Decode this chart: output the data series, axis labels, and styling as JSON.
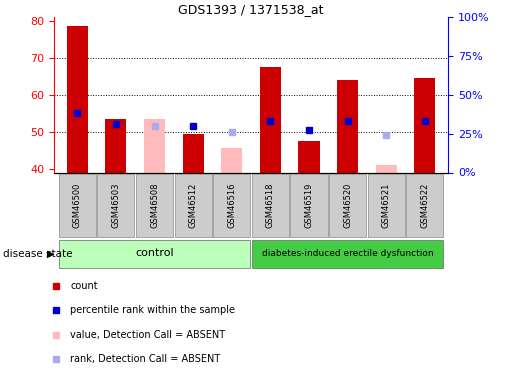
{
  "title": "GDS1393 / 1371538_at",
  "samples": [
    "GSM46500",
    "GSM46503",
    "GSM46508",
    "GSM46512",
    "GSM46516",
    "GSM46518",
    "GSM46519",
    "GSM46520",
    "GSM46521",
    "GSM46522"
  ],
  "count_values": [
    78.5,
    53.5,
    null,
    49.5,
    null,
    67.5,
    47.5,
    64.0,
    null,
    64.5
  ],
  "count_absent": [
    null,
    null,
    53.5,
    null,
    45.5,
    null,
    null,
    null,
    41.0,
    null
  ],
  "rank_values": [
    55.0,
    52.0,
    null,
    51.5,
    null,
    53.0,
    50.5,
    53.0,
    null,
    53.0
  ],
  "rank_absent": [
    null,
    null,
    51.5,
    null,
    50.0,
    null,
    null,
    null,
    49.0,
    null
  ],
  "ylim": [
    39,
    81
  ],
  "yticks": [
    40,
    50,
    60,
    70,
    80
  ],
  "y2ticks": [
    0,
    25,
    50,
    75,
    100
  ],
  "y2labels": [
    "0%",
    "25%",
    "50%",
    "75%",
    "100%"
  ],
  "control_group": [
    0,
    1,
    2,
    3,
    4
  ],
  "disease_group": [
    5,
    6,
    7,
    8,
    9
  ],
  "control_label": "control",
  "disease_label": "diabetes-induced erectile dysfunction",
  "disease_state_label": "disease state",
  "bar_color_red": "#cc0000",
  "bar_color_pink": "#ffbbbb",
  "rank_color_blue": "#0000cc",
  "rank_color_lightblue": "#aaaaee",
  "control_bg": "#bbffbb",
  "disease_bg": "#44cc44",
  "sample_bg": "#cccccc",
  "legend_items": [
    {
      "color": "#cc0000",
      "label": "count"
    },
    {
      "color": "#0000cc",
      "label": "percentile rank within the sample"
    },
    {
      "color": "#ffbbbb",
      "label": "value, Detection Call = ABSENT"
    },
    {
      "color": "#aaaaee",
      "label": "rank, Detection Call = ABSENT"
    }
  ]
}
